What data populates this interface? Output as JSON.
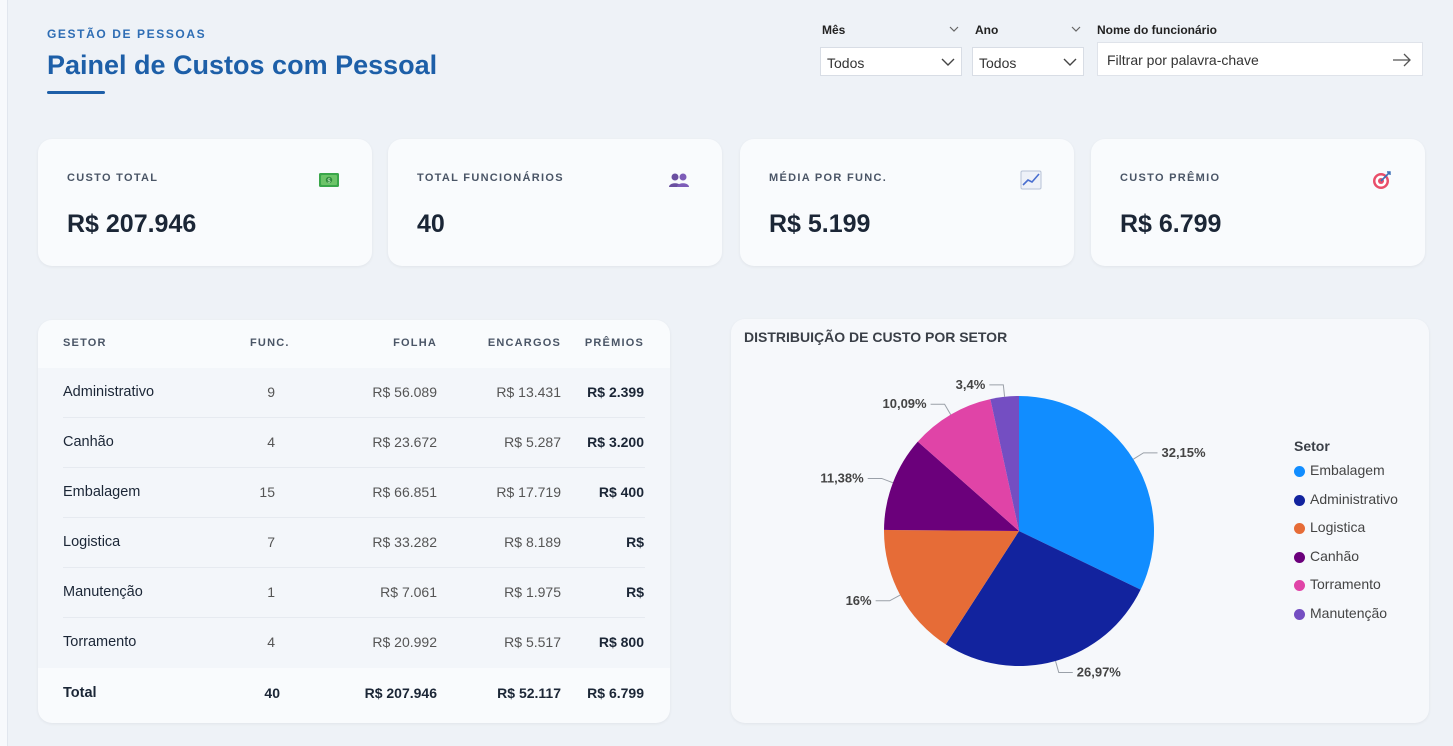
{
  "header": {
    "eyebrow": "GESTÃO DE PESSOAS",
    "title": "Painel de Custos com Pessoal"
  },
  "filters": {
    "month_label": "Mês",
    "month_value": "Todos",
    "year_label": "Ano",
    "year_value": "Todos",
    "employee_label": "Nome do funcionário",
    "employee_placeholder": "Filtrar por palavra-chave"
  },
  "kpis": [
    {
      "label": "CUSTO TOTAL",
      "value": "R$ 207.946",
      "icon": "money-icon"
    },
    {
      "label": "TOTAL FUNCIONÁRIOS",
      "value": "40",
      "icon": "people-icon"
    },
    {
      "label": "MÉDIA POR FUNC.",
      "value": "R$ 5.199",
      "icon": "chart-trend-icon"
    },
    {
      "label": "CUSTO PRÊMIO",
      "value": "R$ 6.799",
      "icon": "target-icon"
    }
  ],
  "table": {
    "headers": {
      "setor": "SETOR",
      "func": "FUNC.",
      "folha": "FOLHA",
      "encargos": "ENCARGOS",
      "premios": "PRÊMIOS"
    },
    "rows": [
      {
        "setor": "Administrativo",
        "func": "9",
        "folha": "R$ 56.089",
        "encargos": "R$ 13.431",
        "premios": "R$ 2.399"
      },
      {
        "setor": "Canhão",
        "func": "4",
        "folha": "R$ 23.672",
        "encargos": "R$ 5.287",
        "premios": "R$ 3.200"
      },
      {
        "setor": "Embalagem",
        "func": "15",
        "folha": "R$ 66.851",
        "encargos": "R$ 17.719",
        "premios": "R$ 400"
      },
      {
        "setor": "Logistica",
        "func": "7",
        "folha": "R$ 33.282",
        "encargos": "R$ 8.189",
        "premios": "R$"
      },
      {
        "setor": "Manutenção",
        "func": "1",
        "folha": "R$ 7.061",
        "encargos": "R$ 1.975",
        "premios": "R$"
      },
      {
        "setor": "Torramento",
        "func": "4",
        "folha": "R$ 20.992",
        "encargos": "R$ 5.517",
        "premios": "R$ 800"
      }
    ],
    "total": {
      "setor": "Total",
      "func": "40",
      "folha": "R$ 207.946",
      "encargos": "R$ 52.117",
      "premios": "R$ 6.799"
    }
  },
  "chart_data": {
    "type": "pie",
    "title": "DISTRIBUIÇÃO DE CUSTO POR SETOR",
    "legend_title": "Setor",
    "legend_position": "right",
    "slices": [
      {
        "name": "Embalagem",
        "value": 32.15,
        "label": "32,15%",
        "color": "#118dff"
      },
      {
        "name": "Administrativo",
        "value": 26.97,
        "label": "26,97%",
        "color": "#12239e"
      },
      {
        "name": "Logistica",
        "value": 16.0,
        "label": "16%",
        "color": "#e66c37"
      },
      {
        "name": "Canhão",
        "value": 11.38,
        "label": "11,38%",
        "color": "#6b007b"
      },
      {
        "name": "Torramento",
        "value": 10.09,
        "label": "10,09%",
        "color": "#e044a7"
      },
      {
        "name": "Manutenção",
        "value": 3.4,
        "label": "3,4%",
        "color": "#744ec2"
      }
    ]
  }
}
